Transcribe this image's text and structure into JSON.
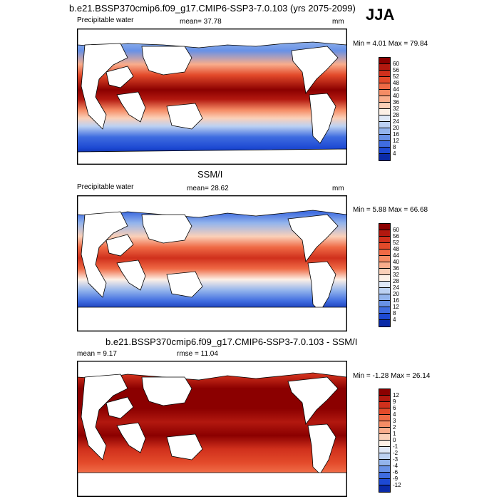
{
  "season": "JJA",
  "panels": [
    {
      "title": "b.e21.BSSP370cmip6.f09_g17.CMIP6-SSP3-7.0.103 (yrs 2075-2099)",
      "left_label": "Precipitable water",
      "center_label": "mean=  37.78",
      "units": "mm",
      "minmax": "Min =   4.01 Max =  79.84",
      "palette": "seq"
    },
    {
      "title": "SSM/I",
      "left_label": "Precipitable water",
      "center_label": "mean=  28.62",
      "units": "mm",
      "minmax": "Min =   5.88 Max =  66.68",
      "palette": "seq"
    },
    {
      "title": "b.e21.BSSP370cmip6.f09_g17.CMIP6-SSP3-7.0.103 - SSM/I",
      "left_label": "mean =   9.17",
      "center_label": "rmse =  11.04",
      "units": "",
      "minmax": "Min =  -1.28 Max =  26.14",
      "palette": "diff"
    }
  ],
  "colorbars": {
    "seq": {
      "labels": [
        "60",
        "56",
        "52",
        "48",
        "44",
        "40",
        "36",
        "32",
        "28",
        "24",
        "20",
        "16",
        "12",
        "8",
        "4"
      ],
      "colors": [
        "#8b0000",
        "#b2180f",
        "#d0301c",
        "#e34a2a",
        "#ef6a45",
        "#f58c65",
        "#f9ad8c",
        "#fbd0b8",
        "#fdf0e6",
        "#dfe8f7",
        "#bcd1f2",
        "#93b4ec",
        "#6891e6",
        "#3f6ce0",
        "#1d49d3",
        "#0a2aa8"
      ]
    },
    "diff": {
      "labels": [
        "12",
        "9",
        "6",
        "4",
        "3",
        "2",
        "1",
        "0",
        "-1",
        "-2",
        "-3",
        "-4",
        "-6",
        "-9",
        "-12"
      ],
      "colors": [
        "#8b0000",
        "#b2180f",
        "#d0301c",
        "#e34a2a",
        "#ef6a45",
        "#f58c65",
        "#f9ad8c",
        "#fbd0b8",
        "#fdf0e6",
        "#dfe8f7",
        "#bcd1f2",
        "#93b4ec",
        "#6891e6",
        "#3f6ce0",
        "#1d49d3",
        "#0a2aa8"
      ]
    }
  }
}
